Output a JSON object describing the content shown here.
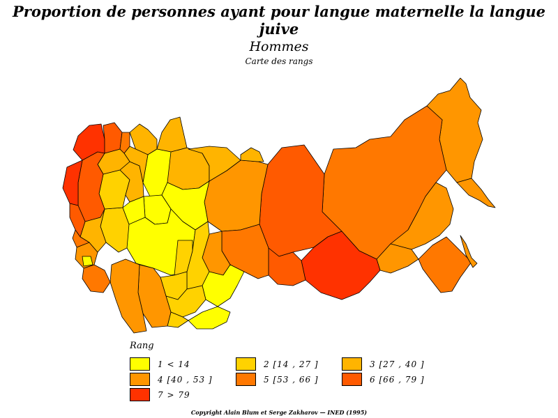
{
  "title": {
    "main": "Proportion de personnes ayant pour langue maternelle la langue juive",
    "subtitle": "Hommes",
    "caption": "Carte des rangs"
  },
  "legend": {
    "title": "Rang",
    "items": [
      {
        "label": "1  <  14",
        "color": "#ffff00"
      },
      {
        "label": "2  [14  ,  27  ]",
        "color": "#ffd200"
      },
      {
        "label": "3  [27  ,  40  ]",
        "color": "#ffb400"
      },
      {
        "label": "4  [40  ,  53  ]",
        "color": "#ff9600"
      },
      {
        "label": "5  [53  ,  66  ]",
        "color": "#ff7800"
      },
      {
        "label": "6  [66  ,  79  ]",
        "color": "#ff5a00"
      },
      {
        "label": "7  >  79",
        "color": "#ff3200"
      }
    ]
  },
  "copyright": "Copyright Alain Blum et Serge Zakharov  —  INED (1995)"
}
